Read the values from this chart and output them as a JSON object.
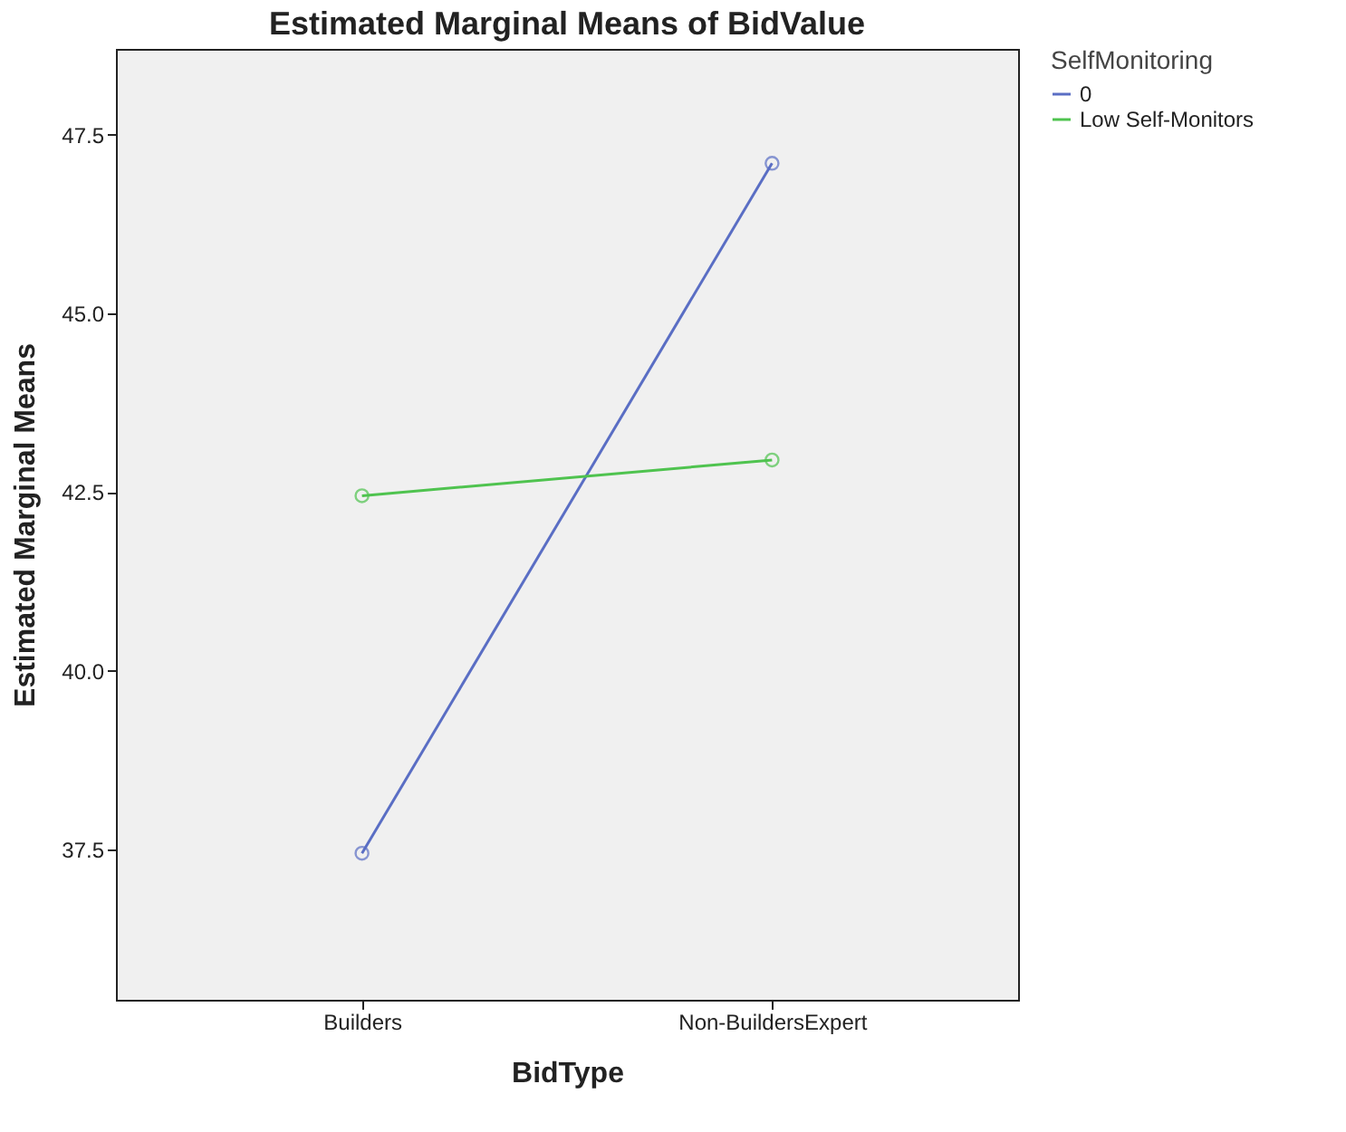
{
  "chart_data": {
    "type": "line",
    "title": "Estimated Marginal Means of BidValue",
    "xlabel": "BidType",
    "ylabel": "Estimated Marginal Means",
    "legend_title": "SelfMonitoring",
    "categories": [
      "Builders",
      "Non-BuildersExpert"
    ],
    "series": [
      {
        "name": "0",
        "color": "#5a6ec4",
        "values": [
          37.45,
          47.1
        ]
      },
      {
        "name": "Low Self-Monitors",
        "color": "#4fc34f",
        "values": [
          42.45,
          42.95
        ]
      }
    ],
    "ylim": [
      35.4,
      48.7
    ],
    "yticks": [
      {
        "value": 37.5,
        "label": "37.5"
      },
      {
        "value": 40,
        "label": "40.0"
      },
      {
        "value": 42.5,
        "label": "42.5"
      },
      {
        "value": 45,
        "label": "45.0"
      },
      {
        "value": 47.5,
        "label": "47.5"
      }
    ],
    "grid": false,
    "legend": "top right",
    "marker": "circle",
    "line_style": "solid"
  }
}
